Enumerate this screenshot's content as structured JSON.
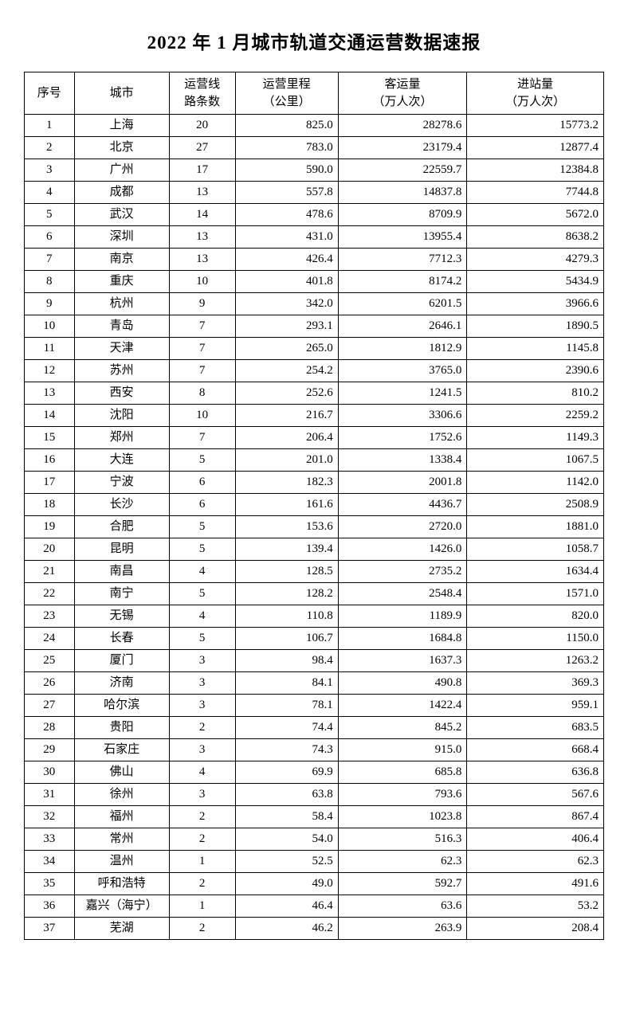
{
  "title": "2022 年 1 月城市轨道交通运营数据速报",
  "columns": {
    "idx": "序号",
    "city": "城市",
    "lines": "运营线\n路条数",
    "km": "运营里程\n（公里）",
    "pax": "客运量\n（万人次）",
    "ent": "进站量\n（万人次）"
  },
  "rows": [
    {
      "idx": 1,
      "city": "上海",
      "lines": 20,
      "km": "825.0",
      "pax": "28278.6",
      "ent": "15773.2"
    },
    {
      "idx": 2,
      "city": "北京",
      "lines": 27,
      "km": "783.0",
      "pax": "23179.4",
      "ent": "12877.4"
    },
    {
      "idx": 3,
      "city": "广州",
      "lines": 17,
      "km": "590.0",
      "pax": "22559.7",
      "ent": "12384.8"
    },
    {
      "idx": 4,
      "city": "成都",
      "lines": 13,
      "km": "557.8",
      "pax": "14837.8",
      "ent": "7744.8"
    },
    {
      "idx": 5,
      "city": "武汉",
      "lines": 14,
      "km": "478.6",
      "pax": "8709.9",
      "ent": "5672.0"
    },
    {
      "idx": 6,
      "city": "深圳",
      "lines": 13,
      "km": "431.0",
      "pax": "13955.4",
      "ent": "8638.2"
    },
    {
      "idx": 7,
      "city": "南京",
      "lines": 13,
      "km": "426.4",
      "pax": "7712.3",
      "ent": "4279.3"
    },
    {
      "idx": 8,
      "city": "重庆",
      "lines": 10,
      "km": "401.8",
      "pax": "8174.2",
      "ent": "5434.9"
    },
    {
      "idx": 9,
      "city": "杭州",
      "lines": 9,
      "km": "342.0",
      "pax": "6201.5",
      "ent": "3966.6"
    },
    {
      "idx": 10,
      "city": "青岛",
      "lines": 7,
      "km": "293.1",
      "pax": "2646.1",
      "ent": "1890.5"
    },
    {
      "idx": 11,
      "city": "天津",
      "lines": 7,
      "km": "265.0",
      "pax": "1812.9",
      "ent": "1145.8"
    },
    {
      "idx": 12,
      "city": "苏州",
      "lines": 7,
      "km": "254.2",
      "pax": "3765.0",
      "ent": "2390.6"
    },
    {
      "idx": 13,
      "city": "西安",
      "lines": 8,
      "km": "252.6",
      "pax": "1241.5",
      "ent": "810.2"
    },
    {
      "idx": 14,
      "city": "沈阳",
      "lines": 10,
      "km": "216.7",
      "pax": "3306.6",
      "ent": "2259.2"
    },
    {
      "idx": 15,
      "city": "郑州",
      "lines": 7,
      "km": "206.4",
      "pax": "1752.6",
      "ent": "1149.3"
    },
    {
      "idx": 16,
      "city": "大连",
      "lines": 5,
      "km": "201.0",
      "pax": "1338.4",
      "ent": "1067.5"
    },
    {
      "idx": 17,
      "city": "宁波",
      "lines": 6,
      "km": "182.3",
      "pax": "2001.8",
      "ent": "1142.0"
    },
    {
      "idx": 18,
      "city": "长沙",
      "lines": 6,
      "km": "161.6",
      "pax": "4436.7",
      "ent": "2508.9"
    },
    {
      "idx": 19,
      "city": "合肥",
      "lines": 5,
      "km": "153.6",
      "pax": "2720.0",
      "ent": "1881.0"
    },
    {
      "idx": 20,
      "city": "昆明",
      "lines": 5,
      "km": "139.4",
      "pax": "1426.0",
      "ent": "1058.7"
    },
    {
      "idx": 21,
      "city": "南昌",
      "lines": 4,
      "km": "128.5",
      "pax": "2735.2",
      "ent": "1634.4"
    },
    {
      "idx": 22,
      "city": "南宁",
      "lines": 5,
      "km": "128.2",
      "pax": "2548.4",
      "ent": "1571.0"
    },
    {
      "idx": 23,
      "city": "无锡",
      "lines": 4,
      "km": "110.8",
      "pax": "1189.9",
      "ent": "820.0"
    },
    {
      "idx": 24,
      "city": "长春",
      "lines": 5,
      "km": "106.7",
      "pax": "1684.8",
      "ent": "1150.0"
    },
    {
      "idx": 25,
      "city": "厦门",
      "lines": 3,
      "km": "98.4",
      "pax": "1637.3",
      "ent": "1263.2"
    },
    {
      "idx": 26,
      "city": "济南",
      "lines": 3,
      "km": "84.1",
      "pax": "490.8",
      "ent": "369.3"
    },
    {
      "idx": 27,
      "city": "哈尔滨",
      "lines": 3,
      "km": "78.1",
      "pax": "1422.4",
      "ent": "959.1"
    },
    {
      "idx": 28,
      "city": "贵阳",
      "lines": 2,
      "km": "74.4",
      "pax": "845.2",
      "ent": "683.5"
    },
    {
      "idx": 29,
      "city": "石家庄",
      "lines": 3,
      "km": "74.3",
      "pax": "915.0",
      "ent": "668.4"
    },
    {
      "idx": 30,
      "city": "佛山",
      "lines": 4,
      "km": "69.9",
      "pax": "685.8",
      "ent": "636.8"
    },
    {
      "idx": 31,
      "city": "徐州",
      "lines": 3,
      "km": "63.8",
      "pax": "793.6",
      "ent": "567.6"
    },
    {
      "idx": 32,
      "city": "福州",
      "lines": 2,
      "km": "58.4",
      "pax": "1023.8",
      "ent": "867.4"
    },
    {
      "idx": 33,
      "city": "常州",
      "lines": 2,
      "km": "54.0",
      "pax": "516.3",
      "ent": "406.4"
    },
    {
      "idx": 34,
      "city": "温州",
      "lines": 1,
      "km": "52.5",
      "pax": "62.3",
      "ent": "62.3"
    },
    {
      "idx": 35,
      "city": "呼和浩特",
      "lines": 2,
      "km": "49.0",
      "pax": "592.7",
      "ent": "491.6"
    },
    {
      "idx": 36,
      "city": "嘉兴（海宁）",
      "lines": 1,
      "km": "46.4",
      "pax": "63.6",
      "ent": "53.2"
    },
    {
      "idx": 37,
      "city": "芜湖",
      "lines": 2,
      "km": "46.2",
      "pax": "263.9",
      "ent": "208.4"
    }
  ]
}
